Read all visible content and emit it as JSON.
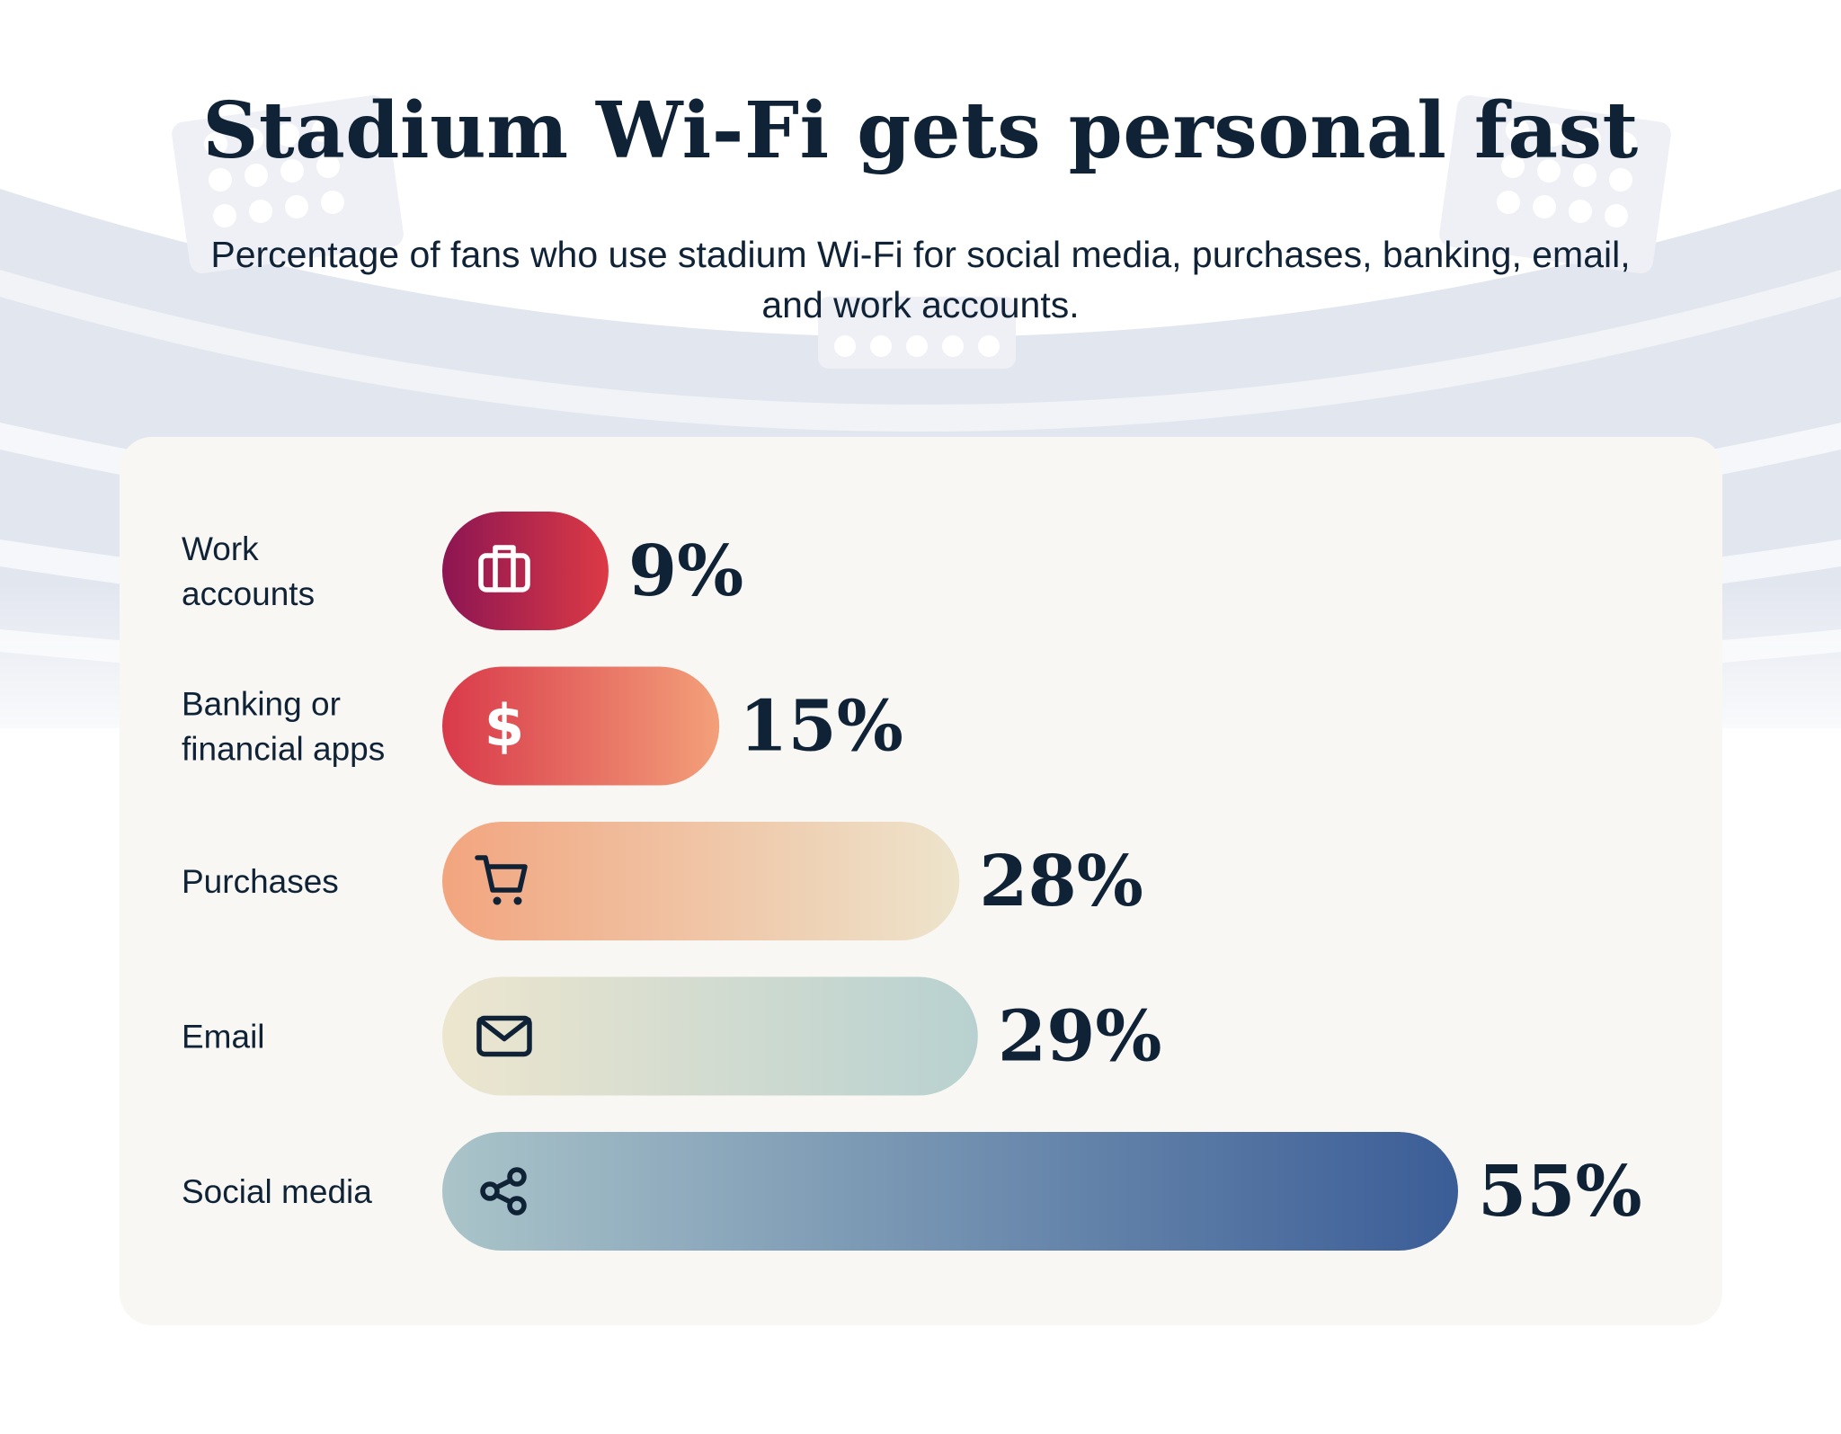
{
  "header": {
    "title": "Stadium Wi-Fi gets personal fast",
    "subtitle": "Percentage of fans who use stadium Wi-Fi for social media, purchases, banking, email, and work accounts."
  },
  "colors": {
    "text": "#0f2236",
    "card": "#f8f7f3",
    "stadium_band": "#e2e6ef"
  },
  "chart_data": {
    "type": "bar",
    "orientation": "horizontal",
    "title": "Stadium Wi-Fi gets personal fast",
    "subtitle": "Percentage of fans who use stadium Wi-Fi for social media, purchases, banking, email, and work accounts.",
    "categories": [
      "Work accounts",
      "Banking or financial apps",
      "Purchases",
      "Email",
      "Social media"
    ],
    "category_lines": [
      [
        "Work",
        "accounts"
      ],
      [
        "Banking or",
        "financial apps"
      ],
      [
        "Purchases"
      ],
      [
        "Email"
      ],
      [
        "Social media"
      ]
    ],
    "values": [
      9,
      15,
      28,
      29,
      55
    ],
    "value_labels": [
      "9%",
      "15%",
      "28%",
      "29%",
      "55%"
    ],
    "unit": "%",
    "icons": [
      "briefcase-icon",
      "dollar-icon",
      "cart-icon",
      "envelope-icon",
      "share-icon"
    ],
    "bar_gradients": [
      [
        "#8c1553",
        "#dc3a45"
      ],
      [
        "#d9394a",
        "#f3a07a"
      ],
      [
        "#f2a57f",
        "#ede4cc"
      ],
      [
        "#ede6cf",
        "#b8d1d0"
      ],
      [
        "#aac4c9",
        "#3b5d97"
      ]
    ],
    "icon_colors": [
      "#ffffff",
      "#ffffff",
      "#0f2236",
      "#0f2236",
      "#0f2236"
    ],
    "xlim": [
      0,
      55
    ],
    "grid": false,
    "legend": "none"
  }
}
